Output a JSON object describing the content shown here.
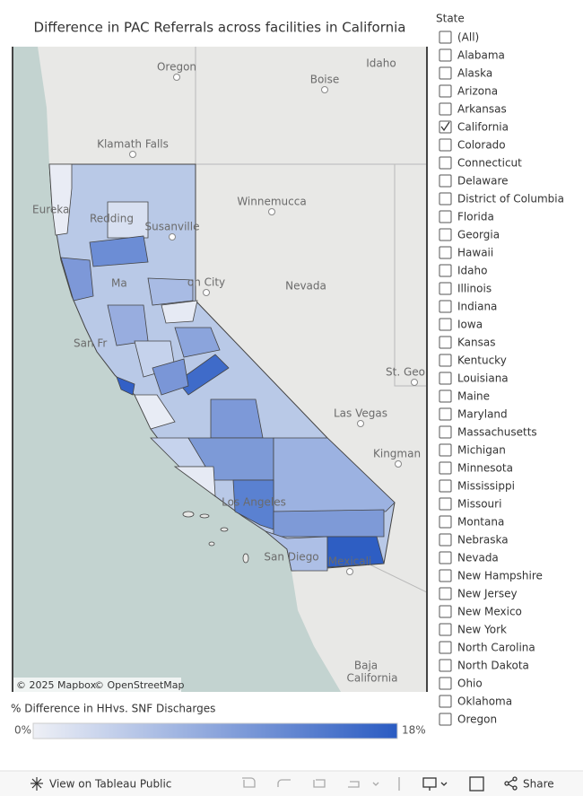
{
  "header": {
    "title": "Difference in PAC Referrals across facilities in California"
  },
  "map": {
    "labels": [
      "Oregon",
      "Idaho",
      "Boise",
      "Klamath Falls",
      "Winnemucca",
      "Eureka",
      "Redding",
      "Susanville",
      "on City",
      "Nevada",
      "Ma",
      "San Fr",
      "St. Geo",
      "Las Vegas",
      "Kingman",
      "Los Angeles",
      "San Diego",
      "Mexicali",
      "Baja",
      "California"
    ],
    "attribution": [
      "© 2025 Mapbox",
      "© OpenStreetMap"
    ]
  },
  "legend": {
    "title": "% Difference in HHvs. SNF Discharges",
    "min_label": "0%",
    "max_label": "18%"
  },
  "filter": {
    "title": "State",
    "items": [
      {
        "label": "(All)",
        "checked": false
      },
      {
        "label": "Alabama",
        "checked": false
      },
      {
        "label": "Alaska",
        "checked": false
      },
      {
        "label": "Arizona",
        "checked": false
      },
      {
        "label": "Arkansas",
        "checked": false
      },
      {
        "label": "California",
        "checked": true
      },
      {
        "label": "Colorado",
        "checked": false
      },
      {
        "label": "Connecticut",
        "checked": false
      },
      {
        "label": "Delaware",
        "checked": false
      },
      {
        "label": "District of Columbia",
        "checked": false
      },
      {
        "label": "Florida",
        "checked": false
      },
      {
        "label": "Georgia",
        "checked": false
      },
      {
        "label": "Hawaii",
        "checked": false
      },
      {
        "label": "Idaho",
        "checked": false
      },
      {
        "label": "Illinois",
        "checked": false
      },
      {
        "label": "Indiana",
        "checked": false
      },
      {
        "label": "Iowa",
        "checked": false
      },
      {
        "label": "Kansas",
        "checked": false
      },
      {
        "label": "Kentucky",
        "checked": false
      },
      {
        "label": "Louisiana",
        "checked": false
      },
      {
        "label": "Maine",
        "checked": false
      },
      {
        "label": "Maryland",
        "checked": false
      },
      {
        "label": "Massachusetts",
        "checked": false
      },
      {
        "label": "Michigan",
        "checked": false
      },
      {
        "label": "Minnesota",
        "checked": false
      },
      {
        "label": "Mississippi",
        "checked": false
      },
      {
        "label": "Missouri",
        "checked": false
      },
      {
        "label": "Montana",
        "checked": false
      },
      {
        "label": "Nebraska",
        "checked": false
      },
      {
        "label": "Nevada",
        "checked": false
      },
      {
        "label": "New Hampshire",
        "checked": false
      },
      {
        "label": "New Jersey",
        "checked": false
      },
      {
        "label": "New Mexico",
        "checked": false
      },
      {
        "label": "New York",
        "checked": false
      },
      {
        "label": "North Carolina",
        "checked": false
      },
      {
        "label": "North Dakota",
        "checked": false
      },
      {
        "label": "Ohio",
        "checked": false
      },
      {
        "label": "Oklahoma",
        "checked": false
      },
      {
        "label": "Oregon",
        "checked": false
      }
    ]
  },
  "toolbar": {
    "view": "View on Tableau Public",
    "share": "Share"
  }
}
